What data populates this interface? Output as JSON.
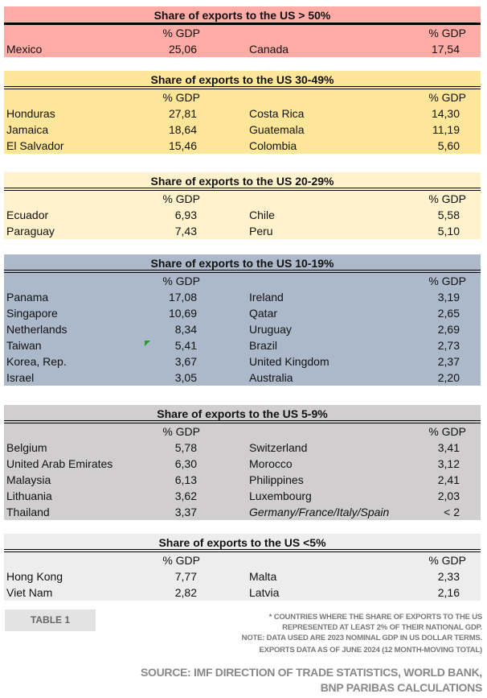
{
  "colors": {
    "gt50": "#ffaca6",
    "s30_49": "#ffe699",
    "s20_29": "#fff2cc",
    "s10_19": "#acb9ca",
    "s5_9": "#d0cece",
    "lt5": "#ededed"
  },
  "gdp_label": "% GDP",
  "sections": [
    {
      "title": "Share of exports to the US > 50%",
      "rows": [
        [
          "Mexico",
          "25,06",
          "Canada",
          "17,54"
        ]
      ]
    },
    {
      "title": "Share of exports to the US 30-49%",
      "rows": [
        [
          "Honduras",
          "27,81",
          "Costa Rica",
          "14,30"
        ],
        [
          "Jamaica",
          "18,64",
          "Guatemala",
          "11,19"
        ],
        [
          "El Salvador",
          "15,46",
          "Colombia",
          "5,60"
        ]
      ]
    },
    {
      "title": "Share of exports to the US 20-29%",
      "rows": [
        [
          "Ecuador",
          "6,93",
          "Chile",
          "5,58"
        ],
        [
          "Paraguay",
          "7,43",
          "Peru",
          "5,10"
        ]
      ]
    },
    {
      "title": "Share of exports to the US 10-19%",
      "rows": [
        [
          "Panama",
          "17,08",
          "Ireland",
          "3,19"
        ],
        [
          "Singapore",
          "10,69",
          "Qatar",
          "2,65"
        ],
        [
          "Netherlands",
          "8,34",
          "Uruguay",
          "2,69"
        ],
        [
          "Taiwan",
          "5,41",
          "Brazil",
          "2,73"
        ],
        [
          "Korea, Rep.",
          "3,67",
          "United Kingdom",
          "2,37"
        ],
        [
          "Israel",
          "3,05",
          "Australia",
          "2,20"
        ]
      ]
    },
    {
      "title": "Share of exports to the US 5-9%",
      "rows": [
        [
          "Belgium",
          "5,78",
          "Switzerland",
          "3,41"
        ],
        [
          "United Arab Emirates",
          "6,30",
          "Morocco",
          "3,12"
        ],
        [
          "Malaysia",
          "6,13",
          "Philippines",
          "2,41"
        ],
        [
          "Lithuania",
          "3,62",
          "Luxembourg",
          "2,03"
        ],
        [
          "Thailand",
          "3,37",
          "Germany/France/Italy/Spain",
          "< 2"
        ]
      ]
    },
    {
      "title": "Share of exports to the US <5%",
      "rows": [
        [
          "Hong Kong",
          "7,77",
          "Malta",
          "2,33"
        ],
        [
          "Viet Nam",
          "2,82",
          "Latvia",
          "2,16"
        ]
      ]
    }
  ],
  "footer": {
    "tag": "TABLE 1",
    "notes": [
      "* COUNTRIES WHERE THE SHARE OF EXPORTS TO THE US",
      "REPRESENTED AT LEAST 2% OF THEIR NATIONAL GDP.",
      "NOTE: DATA USED ARE 2023 NOMINAL GDP IN US DOLLAR TERMS.",
      "EXPORTS DATA AS OF JUNE 2024 (12 MONTH-MOVING TOTAL)"
    ],
    "source": [
      "SOURCE: IMF DIRECTION OF TRADE STATISTICS, WORLD BANK,",
      "BNP PARIBAS CALCULATIONS"
    ]
  }
}
